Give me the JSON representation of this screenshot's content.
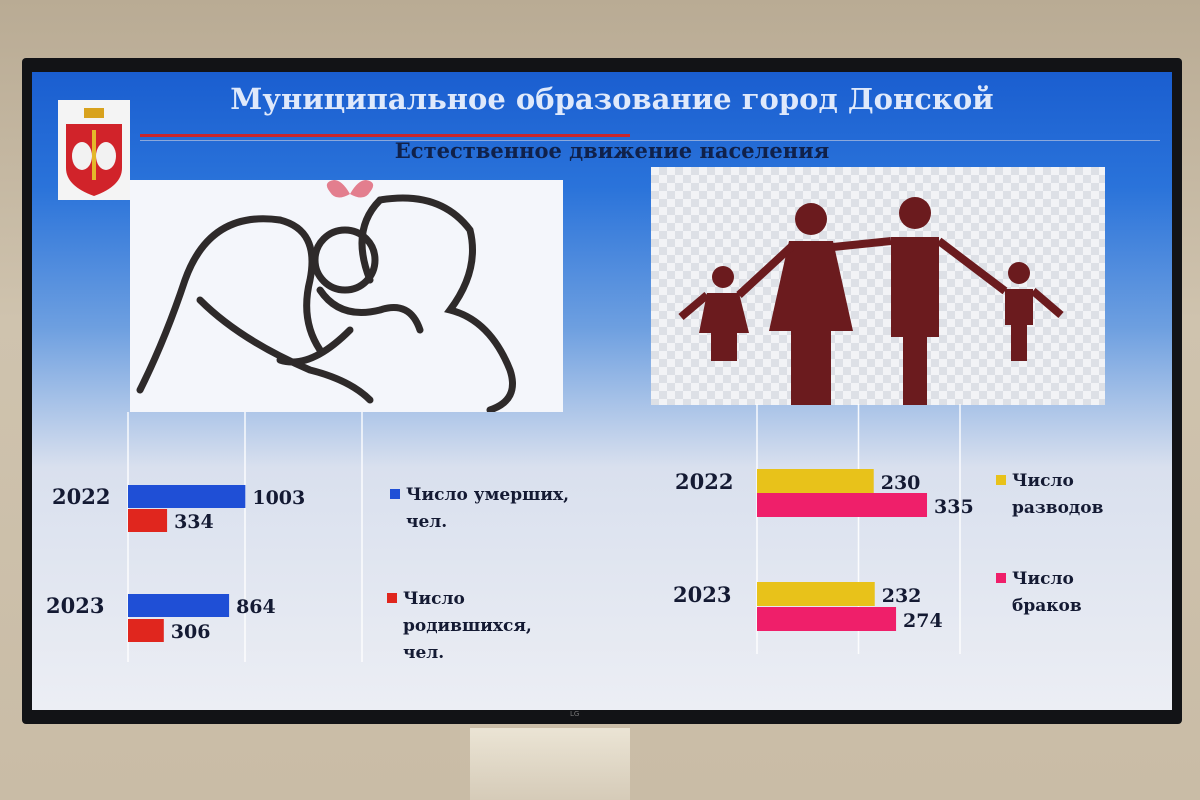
{
  "slide": {
    "title": "Муниципальное  образование город Донской",
    "subtitle": "Естественное движение населения"
  },
  "chart_data": [
    {
      "type": "bar",
      "orientation": "horizontal",
      "categories": [
        "2022",
        "2023"
      ],
      "series": [
        {
          "name": "Число умерших, чел.",
          "values": [
            1003,
            864
          ],
          "color": "#1f4fd6"
        },
        {
          "name": "Число родившихся, чел.",
          "values": [
            334,
            306
          ],
          "color": "#e0261e"
        }
      ],
      "xlim": [
        0,
        2000
      ],
      "grid": true,
      "legend": "right"
    },
    {
      "type": "bar",
      "orientation": "horizontal",
      "categories": [
        "2022",
        "2023"
      ],
      "series": [
        {
          "name": "Число разводов",
          "values": [
            230,
            232
          ],
          "color": "#e8c21a"
        },
        {
          "name": "Число браков",
          "values": [
            335,
            274
          ],
          "color": "#ef1f6a"
        }
      ],
      "xlim": [
        0,
        400
      ],
      "grid": true,
      "legend": "right"
    }
  ],
  "legends": {
    "deaths": "Число умерших,\nчел.",
    "births": "Число\nродившихся,\nчел.",
    "divorces": "Число\nразводов",
    "marriages": "Число\nбраков"
  },
  "icons": [
    "coat-of-arms",
    "family-line-art",
    "family-pictogram"
  ]
}
